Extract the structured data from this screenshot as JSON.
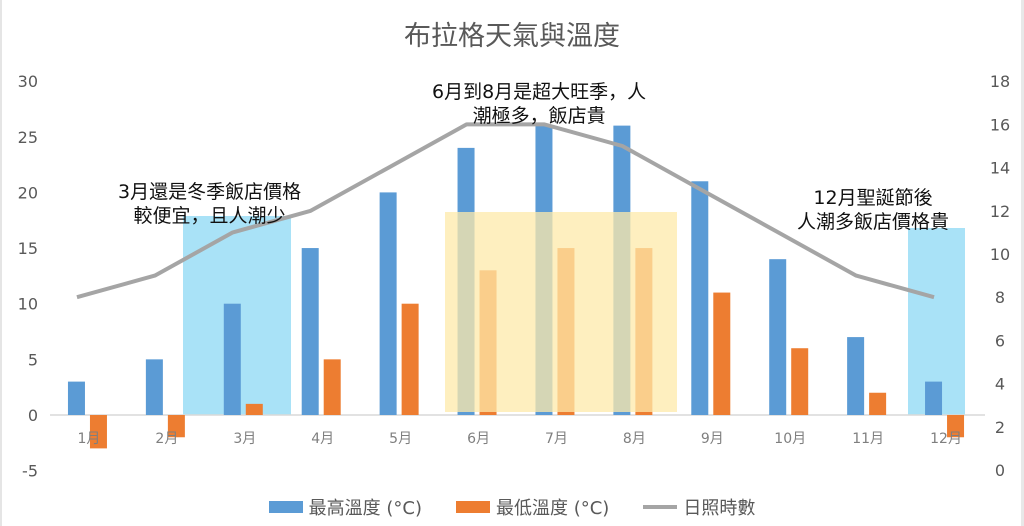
{
  "title": "布拉格天氣與溫度",
  "legend": {
    "high": "最高溫度 (°C)",
    "low": "最低溫度 (°C)",
    "sun": "日照時數"
  },
  "annotations": {
    "march_line1": "3月還是冬季飯店價格",
    "march_line2": "較便宜，且人潮少",
    "summer_line1": "6月到8月是超大旺季，人",
    "summer_line2": "潮極多，飯店貴",
    "december_line1": "12月聖誕節後",
    "december_line2": "人潮多飯店價格貴"
  },
  "colors": {
    "high": "#5b9bd5",
    "low": "#ed7d31",
    "sun": "#a5a5a5",
    "winter_highlight": "#a9e2f7",
    "summer_highlight": "#fde9a9"
  },
  "chart_data": {
    "type": "bar",
    "title": "布拉格天氣與溫度",
    "categories": [
      "1月",
      "2月",
      "3月",
      "4月",
      "5月",
      "6月",
      "7月",
      "8月",
      "9月",
      "10月",
      "11月",
      "12月"
    ],
    "series": [
      {
        "name": "最高溫度 (°C)",
        "type": "bar",
        "axis": "left",
        "values": [
          3,
          5,
          10,
          15,
          20,
          24,
          26,
          26,
          21,
          14,
          7,
          3
        ]
      },
      {
        "name": "最低溫度 (°C)",
        "type": "bar",
        "axis": "left",
        "values": [
          -3,
          -2,
          1,
          5,
          10,
          13,
          15,
          15,
          11,
          6,
          2,
          -2
        ]
      },
      {
        "name": "日照時數",
        "type": "line",
        "axis": "right",
        "values": [
          8,
          9,
          11,
          12,
          14,
          16,
          16,
          15,
          13,
          11,
          9,
          8
        ]
      }
    ],
    "left_axis": {
      "ylim": [
        -5,
        30
      ],
      "ticks": [
        30,
        25,
        20,
        15,
        10,
        5,
        0,
        -5
      ]
    },
    "right_axis": {
      "ylim": [
        0,
        18
      ],
      "ticks": [
        18,
        16,
        14,
        12,
        10,
        8,
        6,
        4,
        2,
        0
      ]
    },
    "legend_position": "bottom",
    "grid": false,
    "annotations": [
      "3月還是冬季飯店價格較便宜，且人潮少",
      "6月到8月是超大旺季，人潮極多，飯店貴",
      "12月聖誕節後人潮多飯店價格貴"
    ]
  }
}
